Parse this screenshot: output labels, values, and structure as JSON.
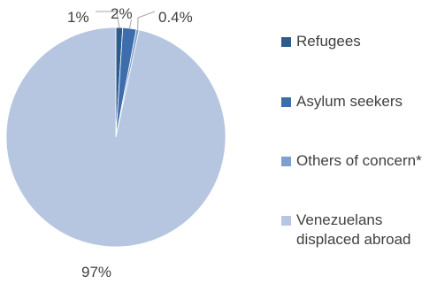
{
  "chart_data": {
    "type": "pie",
    "title": "",
    "slices": [
      {
        "name": "Refugees",
        "value": 1,
        "label": "1%",
        "color": "#2E5B8E"
      },
      {
        "name": "Asylum seekers",
        "value": 2,
        "label": "2%",
        "color": "#3E6DAE"
      },
      {
        "name": "Others of concern*",
        "value": 0.4,
        "label": "0.4%",
        "color": "#7FA0CF"
      },
      {
        "name": "Venezuelans displaced abroad",
        "value": 97,
        "label": "97%",
        "color": "#B7C6E0"
      }
    ],
    "legend": {
      "placement": "right",
      "entries": [
        {
          "label": "Refugees",
          "color": "#2E5B8E"
        },
        {
          "label": "Asylum seekers",
          "color": "#3E6DAE"
        },
        {
          "label": "Others of concern*",
          "color": "#7FA0CF"
        },
        {
          "label": "Venezuelans displaced abroad",
          "color": "#B7C6E0"
        }
      ]
    },
    "label_line_color": "#A6A6A6",
    "slice_border_color": "#FFFFFF"
  }
}
